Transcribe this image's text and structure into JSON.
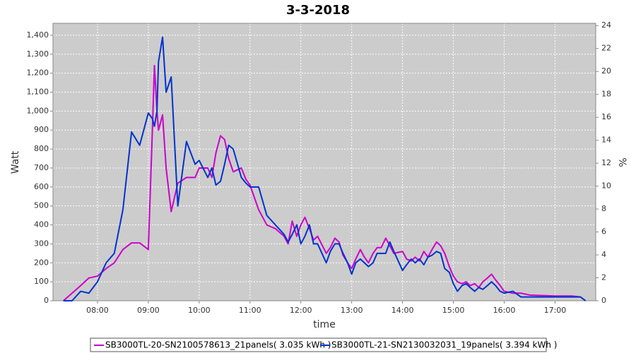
{
  "chart_data": {
    "type": "line",
    "title": "3-3-2018",
    "x_label": "time",
    "y_label": "Watt",
    "y2_label": "%",
    "x": [
      7.33,
      7.5,
      7.67,
      7.83,
      8.0,
      8.17,
      8.33,
      8.5,
      8.67,
      8.83,
      9.0,
      9.08,
      9.12,
      9.17,
      9.2,
      9.28,
      9.35,
      9.45,
      9.58,
      9.75,
      9.92,
      10.0,
      10.17,
      10.25,
      10.33,
      10.42,
      10.5,
      10.58,
      10.67,
      10.83,
      10.92,
      11.0,
      11.17,
      11.33,
      11.5,
      11.67,
      11.75,
      11.83,
      11.92,
      12.0,
      12.08,
      12.17,
      12.25,
      12.33,
      12.5,
      12.58,
      12.67,
      12.75,
      12.83,
      12.92,
      13.0,
      13.08,
      13.17,
      13.25,
      13.33,
      13.42,
      13.5,
      13.58,
      13.67,
      13.75,
      13.83,
      14.0,
      14.08,
      14.17,
      14.25,
      14.33,
      14.42,
      14.5,
      14.58,
      14.67,
      14.75,
      14.83,
      14.92,
      15.0,
      15.08,
      15.17,
      15.25,
      15.33,
      15.42,
      15.5,
      15.58,
      15.67,
      15.75,
      15.83,
      15.92,
      16.0,
      16.17,
      16.33,
      16.5,
      17.0,
      17.33,
      17.5,
      17.6
    ],
    "series": [
      {
        "name": "SB3000TL-20-SN2100578613_21panels( 3.035 kWh )",
        "color": "#cc00cc",
        "values": [
          0,
          40,
          80,
          120,
          130,
          170,
          200,
          270,
          305,
          305,
          270,
          900,
          1240,
          1000,
          900,
          980,
          700,
          470,
          620,
          650,
          650,
          700,
          700,
          650,
          780,
          870,
          850,
          750,
          680,
          700,
          640,
          610,
          480,
          400,
          380,
          340,
          300,
          420,
          340,
          400,
          440,
          380,
          320,
          340,
          250,
          280,
          330,
          310,
          240,
          200,
          170,
          220,
          270,
          230,
          200,
          250,
          280,
          280,
          330,
          290,
          250,
          260,
          220,
          210,
          230,
          210,
          260,
          230,
          270,
          310,
          290,
          250,
          180,
          130,
          100,
          90,
          100,
          80,
          90,
          70,
          100,
          120,
          140,
          110,
          80,
          50,
          40,
          40,
          30,
          25,
          25,
          20,
          0
        ]
      },
      {
        "name": "SB3000TL-21-SN2130032031_19panels( 3.394 kWh )",
        "color": "#0033cc",
        "values": [
          0,
          0,
          50,
          40,
          100,
          200,
          250,
          480,
          890,
          820,
          990,
          960,
          920,
          1000,
          1260,
          1390,
          1100,
          1180,
          500,
          840,
          720,
          740,
          650,
          700,
          610,
          630,
          720,
          820,
          800,
          650,
          620,
          600,
          600,
          450,
          400,
          350,
          310,
          350,
          400,
          300,
          340,
          400,
          300,
          300,
          200,
          260,
          300,
          300,
          250,
          200,
          140,
          200,
          220,
          200,
          180,
          200,
          250,
          250,
          250,
          310,
          260,
          160,
          190,
          220,
          200,
          220,
          190,
          230,
          240,
          260,
          250,
          170,
          150,
          90,
          50,
          80,
          90,
          70,
          50,
          70,
          60,
          80,
          100,
          80,
          50,
          40,
          50,
          20,
          20,
          20,
          20,
          20,
          0
        ]
      }
    ],
    "xlim": [
      7.125,
      17.8
    ],
    "xticks": [
      {
        "value": 8,
        "label": "08:00"
      },
      {
        "value": 9,
        "label": "09:00"
      },
      {
        "value": 10,
        "label": "10:00"
      },
      {
        "value": 11,
        "label": "11:00"
      },
      {
        "value": 12,
        "label": "12:00"
      },
      {
        "value": 13,
        "label": "13:00"
      },
      {
        "value": 14,
        "label": "14:00"
      },
      {
        "value": 15,
        "label": "15:00"
      },
      {
        "value": 16,
        "label": "16:00"
      },
      {
        "value": 17,
        "label": "17:00"
      }
    ],
    "ylim": [
      0,
      1463
    ],
    "yticks": [
      0,
      100,
      200,
      300,
      400,
      500,
      600,
      700,
      800,
      900,
      {
        "value": 1000,
        "label": "1,000"
      },
      {
        "value": 1100,
        "label": "1,100"
      },
      {
        "value": 1200,
        "label": "1,200"
      },
      {
        "value": 1300,
        "label": "1,300"
      },
      {
        "value": 1400,
        "label": "1,400"
      }
    ],
    "y2lim": [
      0,
      24.2
    ],
    "y2ticks": [
      0,
      2,
      4,
      6,
      8,
      10,
      12,
      14,
      16,
      18,
      20,
      22,
      24
    ],
    "grid": true,
    "legend": "bottom"
  }
}
